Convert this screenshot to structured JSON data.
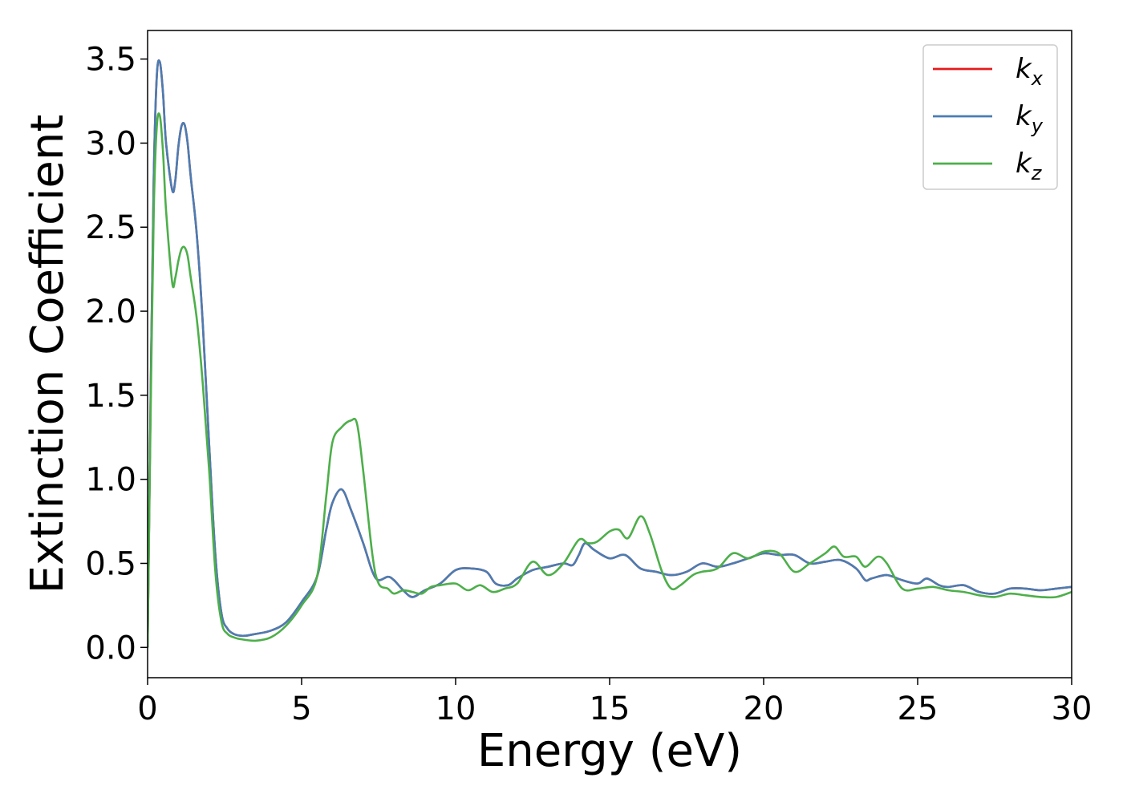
{
  "chart_data": {
    "type": "line",
    "title": "",
    "xlabel": "Energy (eV)",
    "ylabel": "Extinction Coefficient",
    "xlim": [
      0,
      30
    ],
    "ylim": [
      -0.18,
      3.67
    ],
    "xticks": [
      0,
      5,
      10,
      15,
      20,
      25,
      30
    ],
    "yticks": [
      0.0,
      0.5,
      1.0,
      1.5,
      2.0,
      2.5,
      3.0,
      3.5
    ],
    "xtick_labels": [
      "0",
      "5",
      "10",
      "15",
      "20",
      "25",
      "30"
    ],
    "ytick_labels": [
      "0.0",
      "0.5",
      "1.0",
      "1.5",
      "2.0",
      "2.5",
      "3.0",
      "3.5"
    ],
    "grid": false,
    "legend_position": "top-right",
    "series": [
      {
        "name": "k",
        "subscript": "x",
        "color": "#e41a1c",
        "x": [
          0,
          0.1,
          0.2,
          0.3,
          0.4,
          0.5,
          0.6,
          0.8,
          0.9,
          1.0,
          1.1,
          1.2,
          1.3,
          1.4,
          1.6,
          1.8,
          2.0,
          2.2,
          2.4,
          2.6,
          2.8,
          3.0,
          3.2,
          3.5,
          4.0,
          4.5,
          5.0,
          5.5,
          5.8,
          6.0,
          6.3,
          6.6,
          7.0,
          7.3,
          7.5,
          7.8,
          8.0,
          8.3,
          8.6,
          9.0,
          9.5,
          10.0,
          10.5,
          11.0,
          11.3,
          11.7,
          12.0,
          12.5,
          13.0,
          13.5,
          13.8,
          14.0,
          14.2,
          14.5,
          15.0,
          15.5,
          16.0,
          16.5,
          17.0,
          17.5,
          18.0,
          18.5,
          19.0,
          19.5,
          20.0,
          20.5,
          21.0,
          21.5,
          22.0,
          22.5,
          23.0,
          23.3,
          23.5,
          24.0,
          24.5,
          25.0,
          25.3,
          25.7,
          26.0,
          26.5,
          27.0,
          27.5,
          28.0,
          28.5,
          29.0,
          29.5,
          30.0
        ],
        "y": [
          0.0,
          1.5,
          2.8,
          3.4,
          3.48,
          3.3,
          3.0,
          2.72,
          2.78,
          2.98,
          3.1,
          3.11,
          3.0,
          2.8,
          2.45,
          1.9,
          1.2,
          0.55,
          0.2,
          0.11,
          0.08,
          0.07,
          0.07,
          0.08,
          0.1,
          0.15,
          0.27,
          0.42,
          0.7,
          0.86,
          0.94,
          0.82,
          0.62,
          0.45,
          0.4,
          0.42,
          0.4,
          0.34,
          0.3,
          0.34,
          0.38,
          0.46,
          0.47,
          0.45,
          0.38,
          0.37,
          0.41,
          0.46,
          0.48,
          0.5,
          0.49,
          0.55,
          0.62,
          0.58,
          0.53,
          0.55,
          0.47,
          0.45,
          0.43,
          0.45,
          0.5,
          0.48,
          0.5,
          0.53,
          0.56,
          0.55,
          0.55,
          0.5,
          0.51,
          0.52,
          0.47,
          0.4,
          0.41,
          0.43,
          0.4,
          0.38,
          0.41,
          0.37,
          0.36,
          0.37,
          0.33,
          0.32,
          0.35,
          0.35,
          0.34,
          0.35,
          0.36
        ]
      },
      {
        "name": "k",
        "subscript": "y",
        "color": "#4a7db3",
        "x": [
          0,
          0.1,
          0.2,
          0.3,
          0.4,
          0.5,
          0.6,
          0.8,
          0.9,
          1.0,
          1.1,
          1.2,
          1.3,
          1.4,
          1.6,
          1.8,
          2.0,
          2.2,
          2.4,
          2.6,
          2.8,
          3.0,
          3.2,
          3.5,
          4.0,
          4.5,
          5.0,
          5.5,
          5.8,
          6.0,
          6.3,
          6.6,
          7.0,
          7.3,
          7.5,
          7.8,
          8.0,
          8.3,
          8.6,
          9.0,
          9.5,
          10.0,
          10.5,
          11.0,
          11.3,
          11.7,
          12.0,
          12.5,
          13.0,
          13.5,
          13.8,
          14.0,
          14.2,
          14.5,
          15.0,
          15.5,
          16.0,
          16.5,
          17.0,
          17.5,
          18.0,
          18.5,
          19.0,
          19.5,
          20.0,
          20.5,
          21.0,
          21.5,
          22.0,
          22.5,
          23.0,
          23.3,
          23.5,
          24.0,
          24.5,
          25.0,
          25.3,
          25.7,
          26.0,
          26.5,
          27.0,
          27.5,
          28.0,
          28.5,
          29.0,
          29.5,
          30.0
        ],
        "y": [
          0.0,
          1.5,
          2.8,
          3.4,
          3.48,
          3.3,
          3.0,
          2.72,
          2.78,
          2.98,
          3.1,
          3.11,
          3.0,
          2.8,
          2.45,
          1.9,
          1.2,
          0.55,
          0.2,
          0.11,
          0.08,
          0.07,
          0.07,
          0.08,
          0.1,
          0.15,
          0.27,
          0.42,
          0.7,
          0.86,
          0.94,
          0.82,
          0.62,
          0.45,
          0.4,
          0.42,
          0.4,
          0.34,
          0.3,
          0.34,
          0.38,
          0.46,
          0.47,
          0.45,
          0.38,
          0.37,
          0.41,
          0.46,
          0.48,
          0.5,
          0.49,
          0.55,
          0.62,
          0.58,
          0.53,
          0.55,
          0.47,
          0.45,
          0.43,
          0.45,
          0.5,
          0.48,
          0.5,
          0.53,
          0.56,
          0.55,
          0.55,
          0.5,
          0.51,
          0.52,
          0.47,
          0.4,
          0.41,
          0.43,
          0.4,
          0.38,
          0.41,
          0.37,
          0.36,
          0.37,
          0.33,
          0.32,
          0.35,
          0.35,
          0.34,
          0.35,
          0.36
        ]
      },
      {
        "name": "k",
        "subscript": "z",
        "color": "#4daf4a",
        "x": [
          0,
          0.1,
          0.2,
          0.3,
          0.4,
          0.5,
          0.6,
          0.8,
          0.9,
          1.0,
          1.1,
          1.2,
          1.3,
          1.4,
          1.6,
          1.8,
          2.0,
          2.2,
          2.4,
          2.6,
          2.8,
          3.0,
          3.5,
          4.0,
          4.5,
          5.0,
          5.5,
          5.8,
          6.0,
          6.3,
          6.6,
          6.8,
          7.0,
          7.3,
          7.5,
          7.8,
          8.0,
          8.3,
          8.6,
          8.9,
          9.2,
          9.5,
          10.0,
          10.4,
          10.8,
          11.2,
          11.6,
          12.0,
          12.5,
          13.0,
          13.5,
          14.0,
          14.3,
          14.6,
          15.0,
          15.3,
          15.6,
          16.0,
          16.3,
          16.7,
          17.0,
          17.3,
          17.7,
          18.0,
          18.5,
          19.0,
          19.5,
          20.0,
          20.5,
          21.0,
          21.5,
          22.0,
          22.3,
          22.6,
          23.0,
          23.3,
          23.7,
          24.0,
          24.5,
          25.0,
          25.5,
          26.0,
          26.5,
          27.0,
          27.5,
          28.0,
          28.5,
          29.0,
          29.5,
          30.0
        ],
        "y": [
          0.0,
          1.4,
          2.6,
          3.1,
          3.16,
          2.95,
          2.6,
          2.17,
          2.2,
          2.3,
          2.37,
          2.38,
          2.33,
          2.2,
          1.95,
          1.55,
          1.05,
          0.45,
          0.15,
          0.08,
          0.06,
          0.05,
          0.04,
          0.06,
          0.13,
          0.25,
          0.42,
          0.9,
          1.22,
          1.31,
          1.35,
          1.33,
          1.05,
          0.55,
          0.38,
          0.35,
          0.32,
          0.34,
          0.33,
          0.32,
          0.36,
          0.37,
          0.38,
          0.34,
          0.37,
          0.33,
          0.35,
          0.38,
          0.51,
          0.43,
          0.5,
          0.64,
          0.62,
          0.63,
          0.69,
          0.7,
          0.65,
          0.78,
          0.68,
          0.45,
          0.35,
          0.37,
          0.43,
          0.45,
          0.47,
          0.56,
          0.53,
          0.57,
          0.56,
          0.45,
          0.5,
          0.56,
          0.6,
          0.54,
          0.54,
          0.48,
          0.54,
          0.5,
          0.35,
          0.35,
          0.36,
          0.34,
          0.33,
          0.31,
          0.3,
          0.32,
          0.31,
          0.3,
          0.3,
          0.33
        ]
      }
    ]
  }
}
